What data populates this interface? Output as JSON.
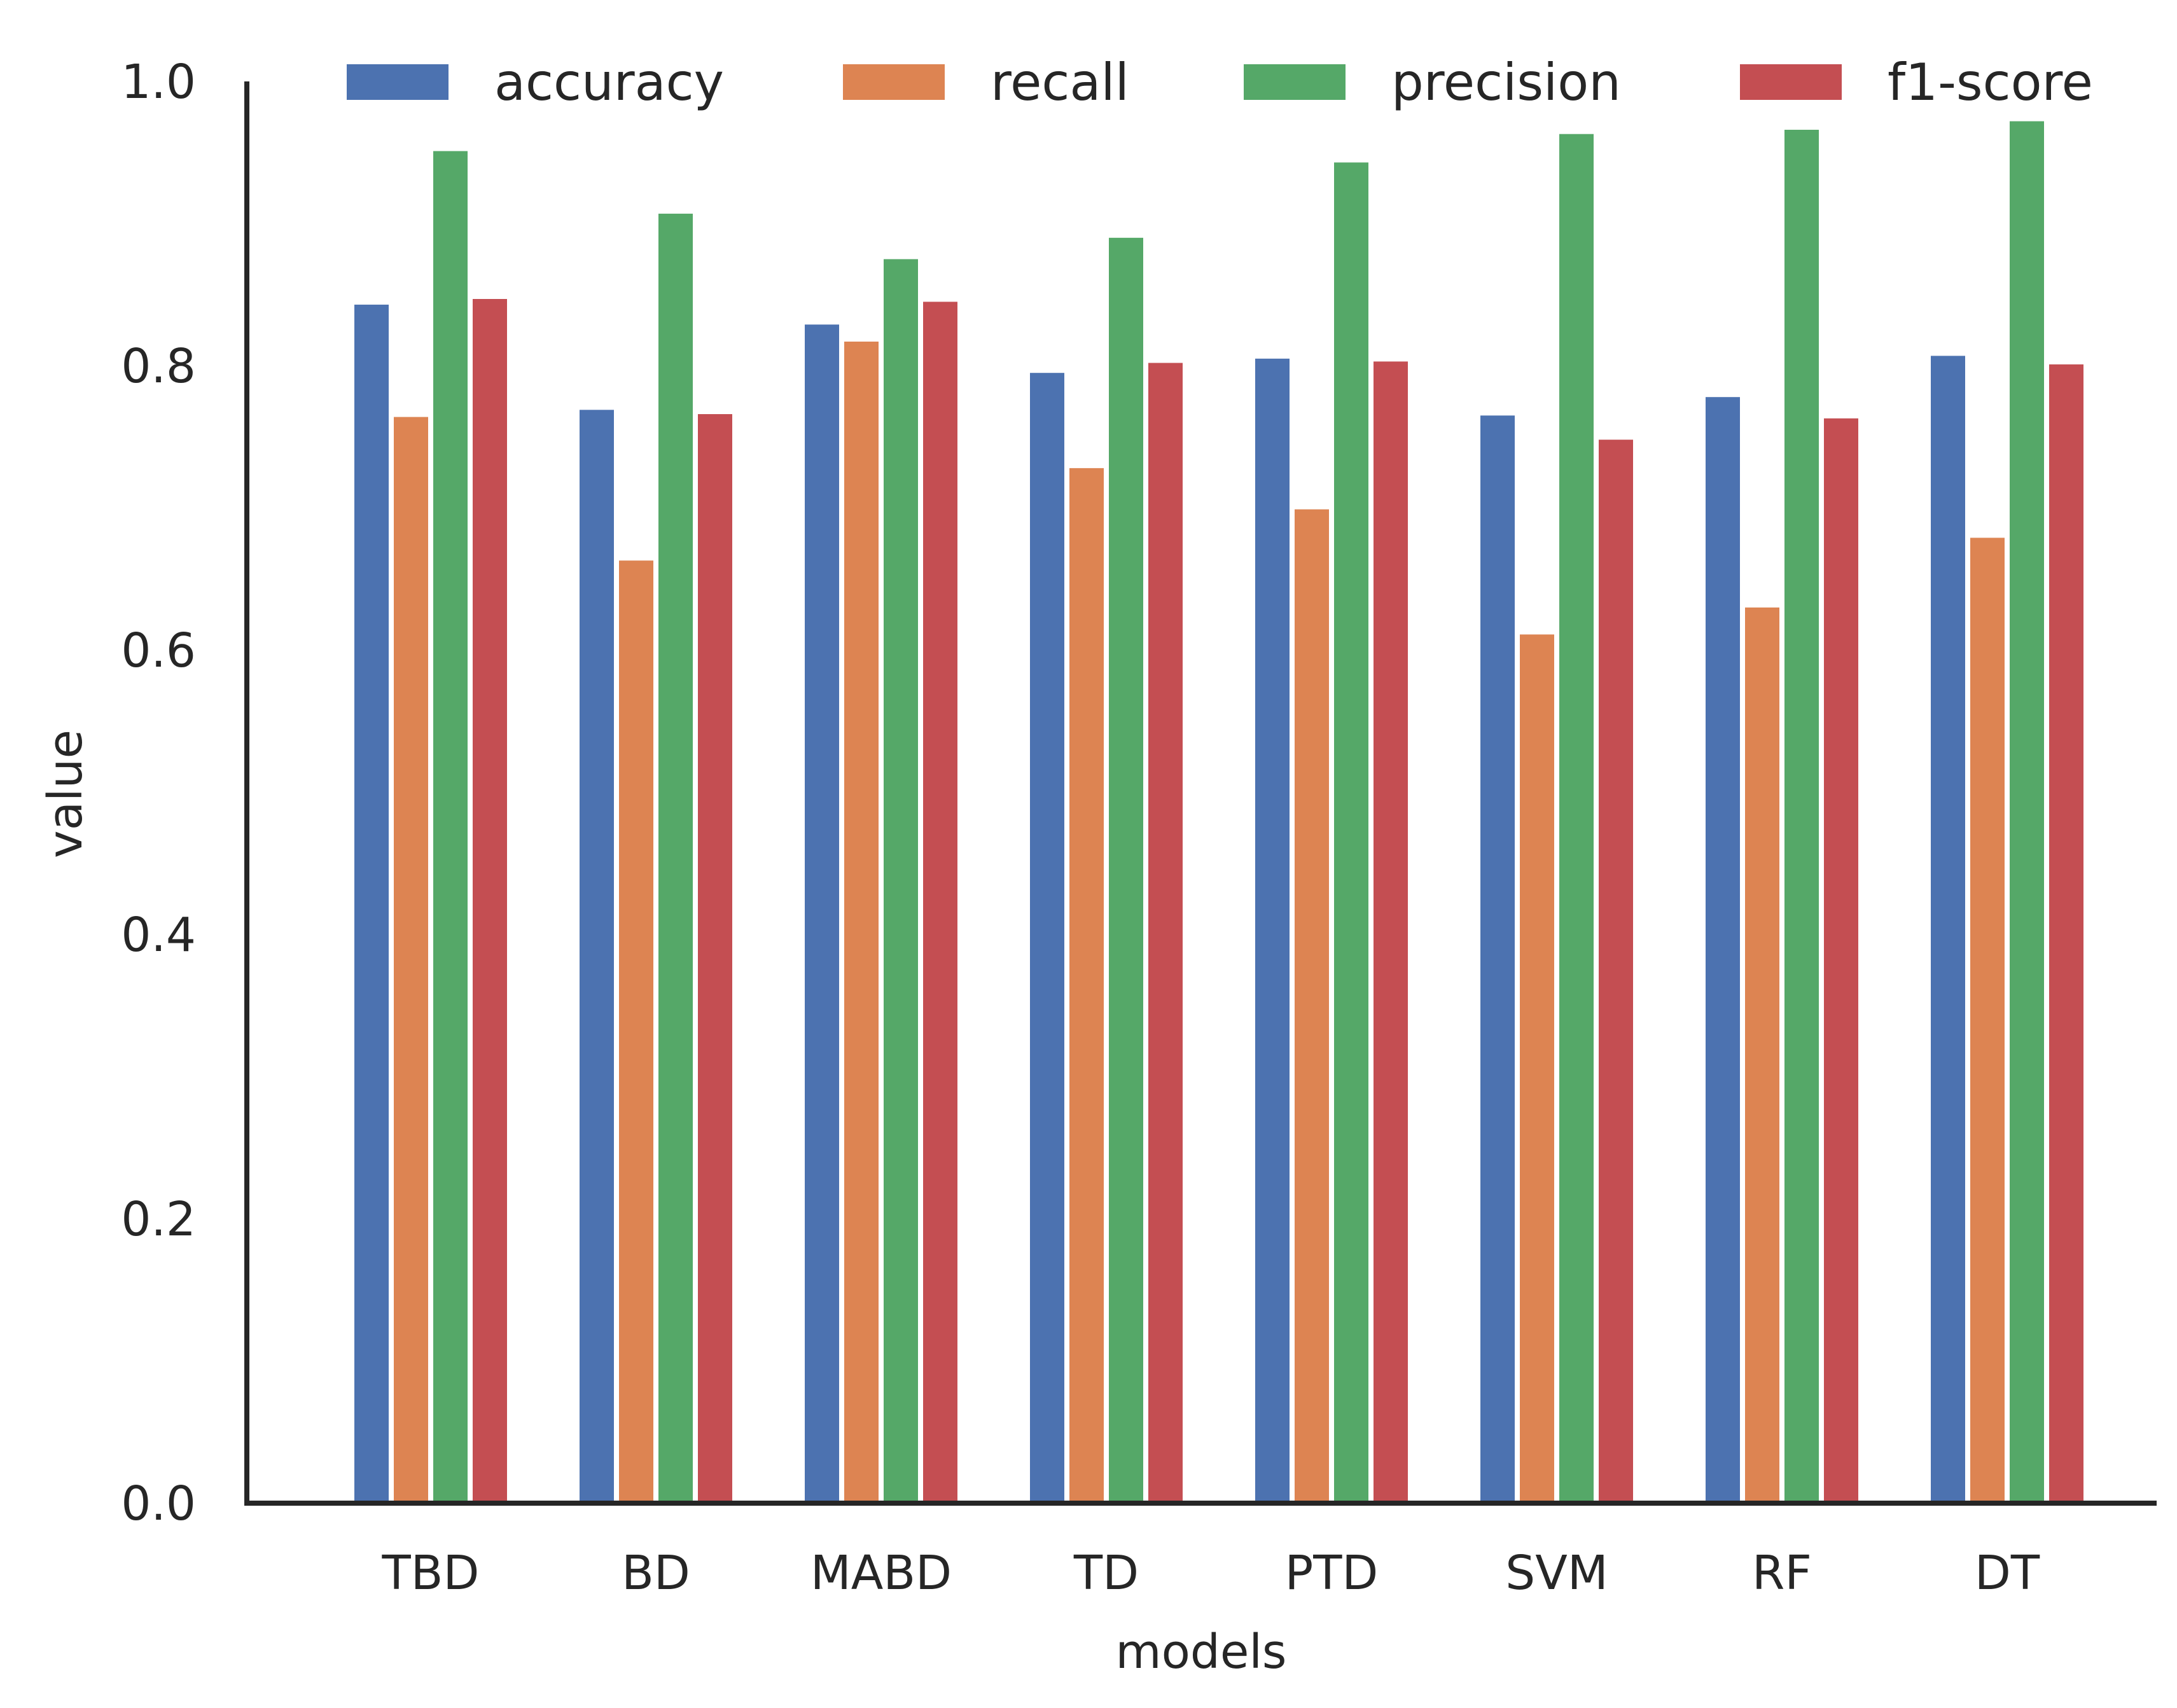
{
  "chart_data": {
    "type": "bar",
    "xlabel": "models",
    "ylabel": "value",
    "categories": [
      "TBD",
      "BD",
      "MABD",
      "TD",
      "PTD",
      "SVM",
      "RF",
      "DT"
    ],
    "ylim": [
      0.0,
      1.0
    ],
    "yticks": [
      "0.0",
      "0.2",
      "0.4",
      "0.6",
      "0.8",
      "1.0"
    ],
    "grid": false,
    "legend_position": "top",
    "series": [
      {
        "name": "accuracy",
        "color": "#4c72b0",
        "values": [
          0.843,
          0.769,
          0.829,
          0.795,
          0.805,
          0.765,
          0.778,
          0.807
        ]
      },
      {
        "name": "recall",
        "color": "#dd8452",
        "values": [
          0.764,
          0.663,
          0.817,
          0.728,
          0.699,
          0.611,
          0.63,
          0.679
        ]
      },
      {
        "name": "precision",
        "color": "#55a868",
        "values": [
          0.951,
          0.907,
          0.875,
          0.89,
          0.943,
          0.963,
          0.966,
          0.972
        ]
      },
      {
        "name": "f1-score",
        "color": "#c44e52",
        "values": [
          0.847,
          0.766,
          0.845,
          0.802,
          0.803,
          0.748,
          0.763,
          0.801
        ]
      }
    ]
  }
}
